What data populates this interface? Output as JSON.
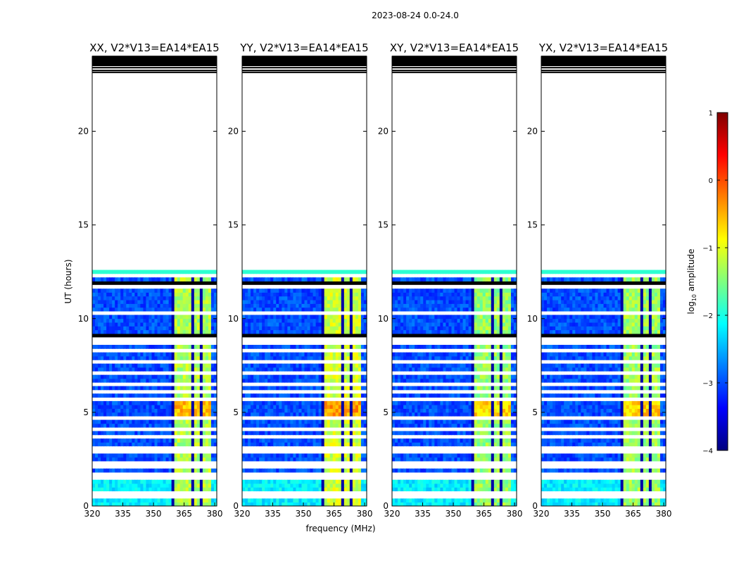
{
  "chart_data": {
    "type": "heatmap",
    "suptitle": "2023-08-24 0.0-24.0",
    "xlabel": "frequency (MHz)",
    "ylabel": "UT (hours)",
    "xlim": [
      320,
      381
    ],
    "ylim": [
      0,
      24
    ],
    "xticks": [
      320,
      335,
      350,
      365,
      380
    ],
    "yticks": [
      0,
      5,
      10,
      15,
      20
    ],
    "data_extent_hours": [
      0,
      12.55
    ],
    "colorbar": {
      "label": "log10 amplitude",
      "range": [
        -4,
        1
      ],
      "ticks": [
        1,
        0,
        -1,
        -2,
        -3,
        -4
      ],
      "tick_labels": [
        "1",
        "0",
        "−1",
        "−2",
        "−3",
        "−4"
      ],
      "colormap": "jet",
      "colors": [
        "#00007f",
        "#0000ff",
        "#007fff",
        "#00ffff",
        "#7fff7f",
        "#ffff00",
        "#ff7f00",
        "#ff0000",
        "#7f0000"
      ]
    },
    "background_level_log10": -3.0,
    "rfi_band_mhz": [
      359,
      378
    ],
    "rfi_band_level_log10": -1.4,
    "panels": [
      {
        "title": "XX, V2*V13=EA14*EA15",
        "band_boost": 0.15
      },
      {
        "title": "YY, V2*V13=EA14*EA15",
        "band_boost": 0.3
      },
      {
        "title": "XY, V2*V13=EA14*EA15",
        "band_boost": 0.0
      },
      {
        "title": "YX, V2*V13=EA14*EA15",
        "band_boost": 0.05
      }
    ],
    "flagged_hours": [
      0.3,
      0.45,
      0.6,
      1.45,
      1.55,
      2.05,
      2.2,
      2.75,
      3.0,
      3.1,
      3.55,
      4.0,
      4.3,
      4.55,
      4.9,
      5.55,
      6.0,
      6.45,
      7.05,
      7.3,
      7.55,
      8.25,
      8.6,
      8.85,
      9.3,
      10.25,
      11.65,
      11.9,
      12.2
    ],
    "black_hours": [
      0.45,
      0.55,
      1.4,
      7.65,
      8.85,
      9.0,
      11.75,
      12.3
    ],
    "top_flag_hours": [
      23.1,
      23.2,
      23.35,
      23.5,
      23.62,
      23.75,
      23.85,
      23.95
    ]
  }
}
